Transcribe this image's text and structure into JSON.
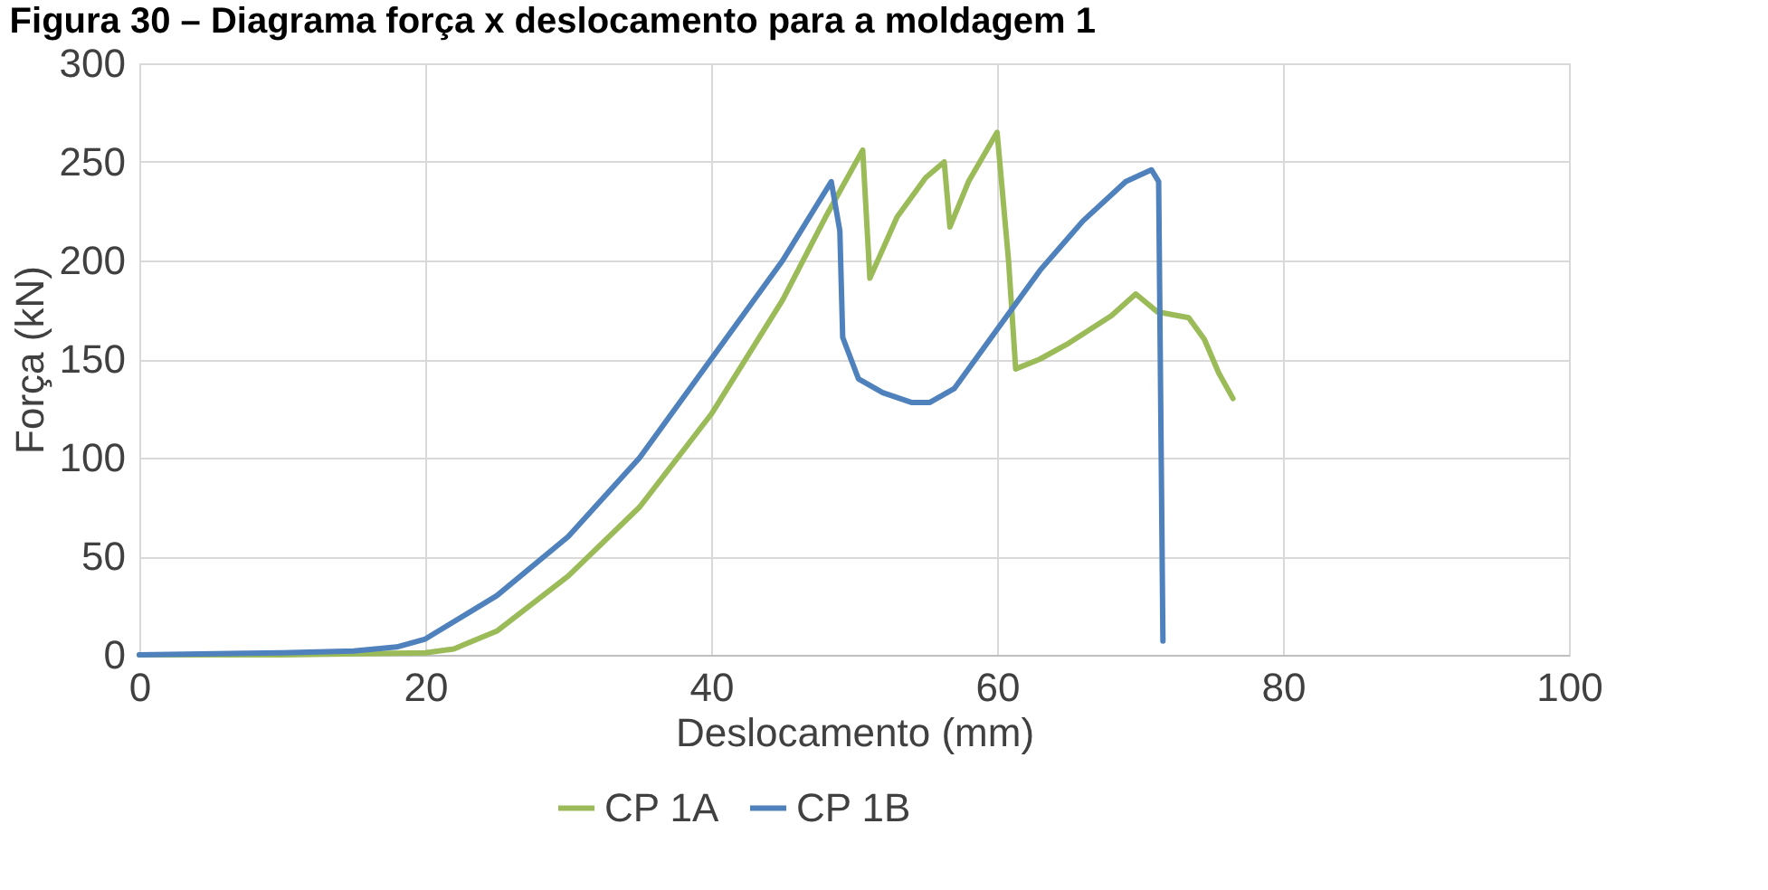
{
  "chart_data": {
    "type": "line",
    "title": "Figura 30 – Diagrama força x deslocamento para a moldagem 1",
    "xlabel": "Deslocamento (mm)",
    "ylabel": "Força (kN)",
    "xlim": [
      0,
      100
    ],
    "xticks": [
      0,
      20,
      40,
      60,
      80,
      100
    ],
    "ylim": [
      0,
      300
    ],
    "yticks": [
      0,
      50,
      100,
      150,
      200,
      250,
      300
    ],
    "grid": true,
    "legend": "bottom",
    "line_style": "solid",
    "marker": "none",
    "series": [
      {
        "name": "CP 1A",
        "color": "#9bbb59",
        "x": [
          0,
          10,
          20,
          22,
          25,
          30,
          35,
          40,
          45,
          48,
          50.6,
          51.1,
          53,
          55,
          56.3,
          56.7,
          58,
          60,
          60.8,
          61.3,
          63,
          65,
          68,
          69.7,
          71.2,
          73.4,
          74.5,
          75.5,
          76.5
        ],
        "values": [
          0,
          0,
          1,
          3,
          12,
          40,
          75,
          122,
          180,
          222,
          256,
          191,
          222,
          242,
          250,
          217,
          240,
          265,
          200,
          145,
          150,
          158,
          172,
          183,
          174,
          171,
          160,
          143,
          130
        ]
      },
      {
        "name": "CP 1B",
        "color": "#4f81bd",
        "x": [
          0,
          10,
          15,
          18,
          20,
          25,
          30,
          35,
          40,
          45,
          48.4,
          49,
          49.2,
          50.3,
          52,
          54,
          55.3,
          57,
          60,
          63,
          66,
          69,
          70.8,
          71.3,
          71.6
        ],
        "values": [
          0,
          1,
          2,
          4,
          8,
          30,
          60,
          100,
          150,
          200,
          240,
          215,
          161,
          140,
          133,
          128,
          128,
          135,
          165,
          195,
          220,
          240,
          246,
          240,
          7
        ]
      }
    ]
  }
}
